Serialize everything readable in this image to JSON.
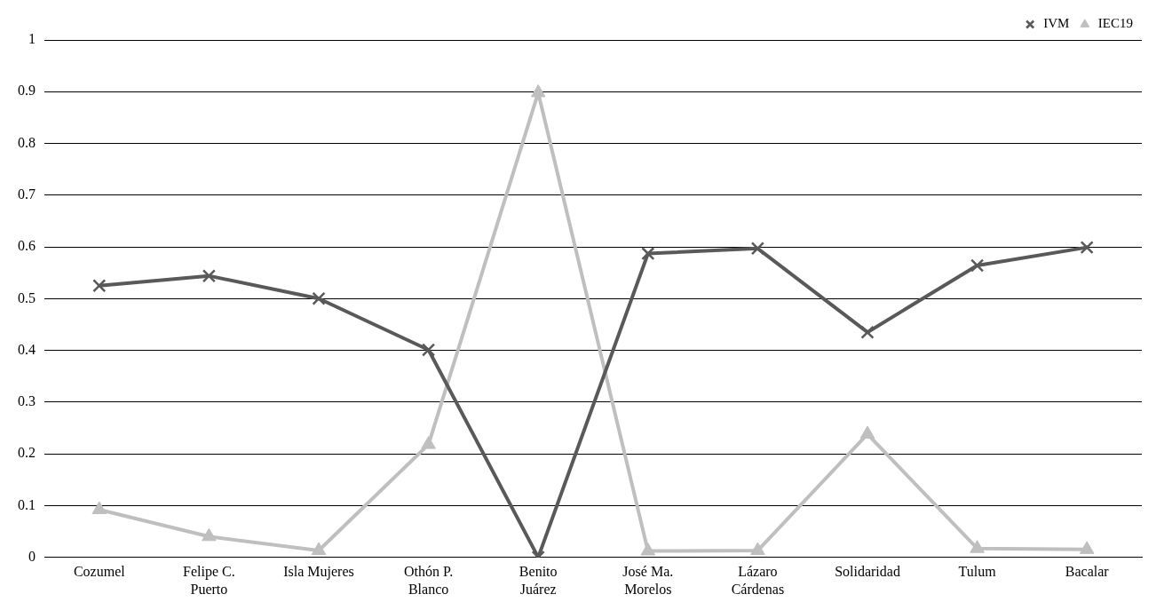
{
  "chart_data": {
    "type": "line",
    "categories": [
      "Cozumel",
      "Felipe C. Puerto",
      "Isla Mujeres",
      "Othón P. Blanco",
      "Benito Juárez",
      "José Ma. Morelos",
      "Lázaro Cárdenas",
      "Solidaridad",
      "Tulum",
      "Bacalar"
    ],
    "series": [
      {
        "name": "IVM",
        "color": "#595959",
        "marker": "cross",
        "values": [
          0.525,
          0.544,
          0.5,
          0.401,
          0,
          0.587,
          0.597,
          0.435,
          0.564,
          0.599
        ]
      },
      {
        "name": "IEC19",
        "color": "#bfbfbf",
        "marker": "triangle",
        "values": [
          0.092,
          0.04,
          0.013,
          0.218,
          0.898,
          0.012,
          0.013,
          0.238,
          0.017,
          0.015
        ]
      }
    ],
    "ylim": [
      0,
      1
    ],
    "yticks": [
      0,
      0.1,
      0.2,
      0.3,
      0.4,
      0.5,
      0.6,
      0.7,
      0.8,
      0.9,
      1
    ],
    "grid": "y",
    "legend": "top right"
  }
}
